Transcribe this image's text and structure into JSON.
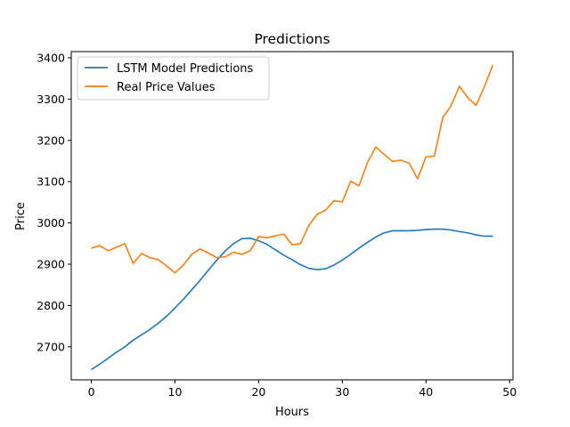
{
  "chart_data": {
    "type": "line",
    "title": "Predictions",
    "xlabel": "Hours",
    "ylabel": "Price",
    "xlim": [
      -2.4,
      50.4
    ],
    "ylim": [
      2620,
      3415
    ],
    "xticks": [
      0,
      10,
      20,
      30,
      40,
      50
    ],
    "yticks": [
      2700,
      2800,
      2900,
      3000,
      3100,
      3200,
      3300,
      3400
    ],
    "grid": false,
    "legend_position": "top-left",
    "x": [
      0,
      1,
      2,
      3,
      4,
      5,
      6,
      7,
      8,
      9,
      10,
      11,
      12,
      13,
      14,
      15,
      16,
      17,
      18,
      19,
      20,
      21,
      22,
      23,
      24,
      25,
      26,
      27,
      28,
      29,
      30,
      31,
      32,
      33,
      34,
      35,
      36,
      37,
      38,
      39,
      40,
      41,
      42,
      43,
      44,
      45,
      46,
      47,
      48
    ],
    "series": [
      {
        "name": "LSTM Model Predictions",
        "color": "#1f77b4",
        "values": [
          2645,
          2658,
          2672,
          2687,
          2700,
          2716,
          2729,
          2742,
          2757,
          2774,
          2794,
          2815,
          2838,
          2861,
          2886,
          2910,
          2932,
          2950,
          2962,
          2963,
          2957,
          2948,
          2935,
          2922,
          2911,
          2899,
          2890,
          2887,
          2889,
          2898,
          2910,
          2924,
          2939,
          2953,
          2966,
          2976,
          2981,
          2981,
          2981,
          2982,
          2984,
          2985,
          2985,
          2983,
          2979,
          2976,
          2971,
          2968,
          2968
        ]
      },
      {
        "name": "Real Price Values",
        "color": "#ff7f0e",
        "values": [
          2939,
          2945,
          2933,
          2941,
          2950,
          2902,
          2926,
          2916,
          2911,
          2896,
          2879,
          2898,
          2924,
          2937,
          2927,
          2916,
          2918,
          2929,
          2924,
          2933,
          2967,
          2964,
          2969,
          2973,
          2947,
          2950,
          2994,
          3021,
          3031,
          3054,
          3051,
          3101,
          3090,
          3146,
          3184,
          3166,
          3149,
          3152,
          3145,
          3107,
          3160,
          3162,
          3255,
          3284,
          3331,
          3303,
          3285,
          3331,
          3383
        ]
      }
    ]
  }
}
